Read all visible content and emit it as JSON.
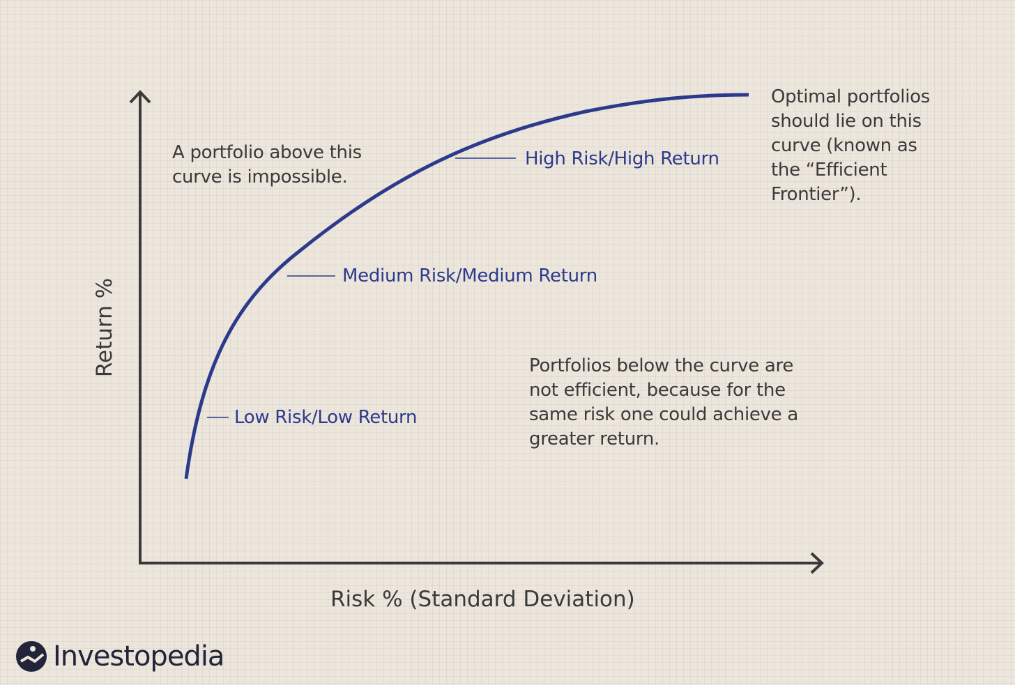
{
  "axes": {
    "x_label": "Risk % (Standard Deviation)",
    "y_label": "Return %"
  },
  "curve_labels": {
    "low": "Low Risk/Low Return",
    "medium": "Medium Risk/Medium Return",
    "high": "High Risk/High Return"
  },
  "notes": {
    "above": [
      "A portfolio above this",
      "curve is impossible."
    ],
    "optimal": [
      "Optimal portfolios",
      "should lie on this",
      "curve (known as",
      "the “Efficient",
      "Frontier”)."
    ],
    "below": [
      "Portfolios below the curve are",
      "not efficient, because for the",
      "same risk one could achieve a",
      "greater return."
    ]
  },
  "brand": {
    "name": "Investopedia"
  },
  "colors": {
    "curve": "#2c3a8c",
    "axis": "#3a3a3a",
    "background": "#ece6dd"
  }
}
